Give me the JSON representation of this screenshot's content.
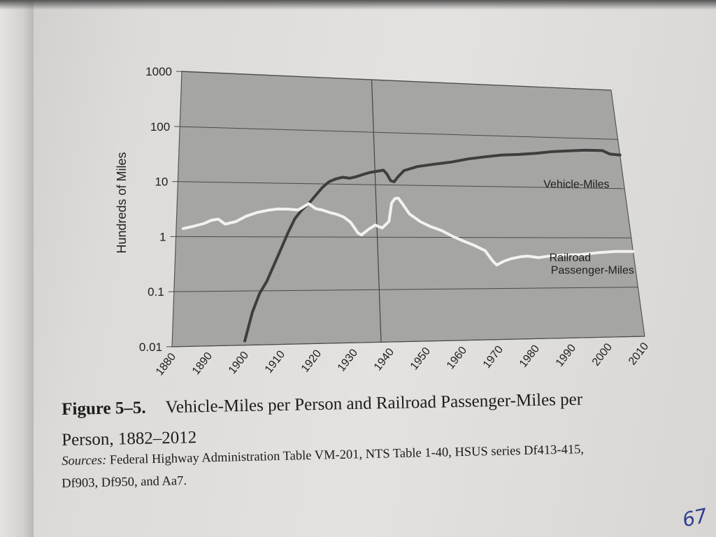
{
  "chart_data": {
    "type": "line",
    "ylabel": "Hundreds of Miles",
    "xlabel": "",
    "yscale": "log",
    "ylim": [
      0.01,
      1000
    ],
    "xlim": [
      1880,
      2010
    ],
    "y_ticks": [
      "1000",
      "100",
      "10",
      "1",
      "0.1",
      "0.01"
    ],
    "x_ticks": [
      "1880",
      "1890",
      "1900",
      "1910",
      "1920",
      "1930",
      "1940",
      "1950",
      "1960",
      "1970",
      "1980",
      "1990",
      "2000",
      "2010"
    ],
    "grid": true,
    "series": [
      {
        "name": "Vehicle-Miles",
        "color": "#3e3e3e",
        "x": [
          1900,
          1902,
          1904,
          1906,
          1908,
          1910,
          1912,
          1914,
          1916,
          1918,
          1920,
          1922,
          1924,
          1926,
          1928,
          1930,
          1932,
          1934,
          1936,
          1938,
          1940,
          1941,
          1942,
          1943,
          1944,
          1946,
          1950,
          1955,
          1960,
          1965,
          1970,
          1975,
          1980,
          1985,
          1990,
          1995,
          2000,
          2005,
          2007,
          2010
        ],
        "values": [
          0.012,
          0.04,
          0.09,
          0.15,
          0.3,
          0.6,
          1.2,
          2.2,
          3.2,
          4.2,
          6.0,
          8.5,
          11,
          12.5,
          13.5,
          13,
          14,
          15.5,
          17,
          18,
          19,
          16,
          12,
          11.5,
          14,
          19,
          23,
          26,
          29,
          34,
          38,
          42,
          44,
          47,
          52,
          55,
          58,
          58,
          50,
          48
        ]
      },
      {
        "name": "Railroad Passenger-Miles",
        "color": "#f4f2ee",
        "x": [
          1882,
          1885,
          1888,
          1890,
          1892,
          1894,
          1897,
          1900,
          1903,
          1906,
          1909,
          1912,
          1915,
          1918,
          1920,
          1922,
          1924,
          1926,
          1928,
          1930,
          1932,
          1933,
          1935,
          1937,
          1939,
          1941,
          1942,
          1943,
          1944,
          1945,
          1947,
          1950,
          1953,
          1956,
          1959,
          1962,
          1965,
          1968,
          1970,
          1971,
          1973,
          1975,
          1978,
          1980,
          1983,
          1986,
          1990,
          1995,
          2000,
          2005,
          2010
        ],
        "values": [
          1.4,
          1.55,
          1.75,
          2.0,
          2.1,
          1.7,
          1.9,
          2.4,
          2.8,
          3.1,
          3.3,
          3.3,
          3.2,
          4.2,
          3.4,
          3.2,
          2.9,
          2.7,
          2.4,
          1.9,
          1.2,
          1.1,
          1.4,
          1.7,
          1.5,
          2.0,
          4.5,
          5.5,
          5.6,
          4.5,
          2.8,
          2.0,
          1.6,
          1.35,
          1.05,
          0.85,
          0.7,
          0.55,
          0.34,
          0.29,
          0.34,
          0.38,
          0.42,
          0.43,
          0.4,
          0.43,
          0.45,
          0.46,
          0.5,
          0.53,
          0.53
        ]
      }
    ],
    "annotations": [
      "Vehicle-Miles",
      "Railroad",
      "Passenger-Miles"
    ]
  },
  "caption": {
    "figure_label": "Figure 5–5.",
    "figure_title_line1": "Vehicle-Miles per Person and Railroad Passenger-Miles per",
    "figure_title_line2": "Person, 1882–2012",
    "sources_label": "Sources:",
    "sources_line1": " Federal Highway Administration Table VM-201, NTS Table 1-40, HSUS series Df413-415,",
    "sources_line2": "Df903, Df950, and Aa7."
  },
  "page_number": "67",
  "colors": {
    "plot_background": "#a5a5a3",
    "grid": "#4a4a4a",
    "vehicle_line": "#3e3e3e",
    "railroad_line": "#f4f2ee"
  }
}
